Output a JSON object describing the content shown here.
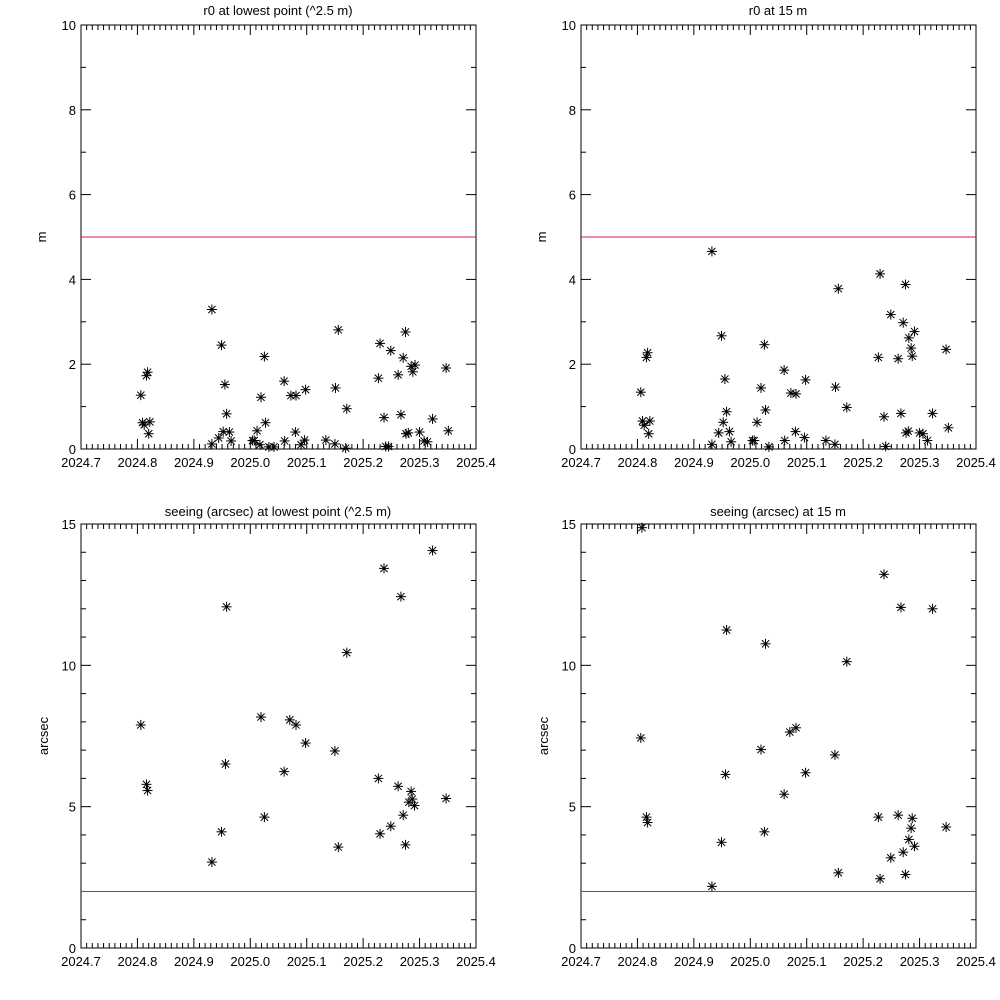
{
  "line_color": "#e0106a",
  "chart_data": [
    {
      "type": "scatter",
      "title": "r0 at lowest point (^2.5 m)",
      "xlabel": "",
      "ylabel": "m",
      "xlim": [
        2024.7,
        2025.4
      ],
      "ylim": [
        0,
        10
      ],
      "xticks": [
        "2024.7",
        "2024.8",
        "2024.9",
        "2025.0",
        "2025.1",
        "2025.2",
        "2025.3",
        "2025.4"
      ],
      "yticks": [
        "0",
        "2",
        "4",
        "6",
        "8",
        "10"
      ],
      "ytick_step": 2,
      "threshold": 5,
      "x": [
        2024.806,
        2024.809,
        2024.812,
        2024.818,
        2024.816,
        2024.822,
        2024.82,
        2024.932,
        2024.949,
        2024.955,
        2024.958,
        2024.944,
        2024.952,
        2024.963,
        2024.966,
        2024.932,
        2025.004,
        2025.007,
        2025.012,
        2025.019,
        2025.025,
        2025.027,
        2025.017,
        2025.033,
        2025.042,
        2025.06,
        2025.072,
        2025.081,
        2025.098,
        2025.08,
        2025.061,
        2025.09,
        2025.096,
        2025.134,
        2025.15,
        2025.151,
        2025.156,
        2025.171,
        2025.169,
        2025.227,
        2025.23,
        2025.237,
        2025.249,
        2025.262,
        2025.275,
        2025.271,
        2025.267,
        2025.276,
        2025.28,
        2025.285,
        2025.288,
        2025.292,
        2025.3,
        2025.308,
        2025.314,
        2025.323,
        2025.347,
        2025.351,
        2025.24,
        2025.245
      ],
      "y": [
        1.27,
        0.62,
        0.57,
        1.81,
        1.73,
        0.64,
        0.36,
        3.29,
        2.45,
        1.52,
        0.83,
        0.26,
        0.41,
        0.4,
        0.19,
        0.12,
        0.2,
        0.2,
        0.43,
        1.22,
        2.18,
        0.62,
        0.1,
        0.05,
        0.05,
        1.6,
        1.26,
        1.26,
        1.4,
        0.4,
        0.19,
        0.1,
        0.21,
        0.21,
        0.12,
        1.44,
        2.81,
        0.95,
        0.02,
        1.67,
        2.49,
        0.74,
        2.32,
        1.75,
        2.76,
        2.15,
        0.81,
        0.36,
        0.38,
        1.95,
        1.82,
        1.98,
        0.4,
        0.19,
        0.17,
        0.71,
        1.91,
        0.43,
        0.06,
        0.06
      ]
    },
    {
      "type": "scatter",
      "title": "r0 at 15 m",
      "xlabel": "",
      "ylabel": "m",
      "xlim": [
        2024.7,
        2025.4
      ],
      "ylim": [
        0,
        10
      ],
      "xticks": [
        "2024.7",
        "2024.8",
        "2024.9",
        "2025.0",
        "2025.1",
        "2025.2",
        "2025.3",
        "2025.4"
      ],
      "yticks": [
        "0",
        "2",
        "4",
        "6",
        "8",
        "10"
      ],
      "ytick_step": 2,
      "threshold": 5,
      "x": [
        2024.806,
        2024.809,
        2024.812,
        2024.822,
        2024.82,
        2024.818,
        2024.816,
        2024.932,
        2024.949,
        2024.955,
        2024.958,
        2024.952,
        2024.944,
        2024.963,
        2024.966,
        2024.932,
        2025.025,
        2025.019,
        2025.027,
        2025.012,
        2025.004,
        2025.007,
        2025.06,
        2025.072,
        2025.081,
        2025.098,
        2025.08,
        2025.061,
        2025.096,
        2025.134,
        2025.15,
        2025.151,
        2025.156,
        2025.171,
        2025.227,
        2025.23,
        2025.237,
        2025.249,
        2025.262,
        2025.275,
        2025.271,
        2025.267,
        2025.276,
        2025.28,
        2025.281,
        2025.285,
        2025.287,
        2025.291,
        2025.3,
        2025.306,
        2025.314,
        2025.323,
        2025.347,
        2025.351,
        2025.24,
        2025.033
      ],
      "y": [
        1.34,
        0.66,
        0.56,
        0.66,
        0.36,
        2.27,
        2.16,
        4.66,
        2.67,
        1.65,
        0.88,
        0.63,
        0.38,
        0.41,
        0.17,
        0.11,
        2.46,
        1.44,
        0.92,
        0.63,
        0.2,
        0.2,
        1.86,
        1.32,
        1.3,
        1.63,
        0.41,
        0.2,
        0.27,
        0.2,
        0.11,
        1.46,
        3.78,
        0.98,
        2.16,
        4.13,
        0.76,
        3.17,
        2.13,
        3.88,
        2.98,
        0.84,
        0.38,
        0.42,
        2.62,
        2.38,
        2.19,
        2.77,
        0.38,
        0.36,
        0.2,
        0.84,
        2.35,
        0.5,
        0.06,
        0.05
      ]
    },
    {
      "type": "scatter",
      "title": "seeing (arcsec) at lowest point (^2.5 m)",
      "xlabel": "",
      "ylabel": "arcsec",
      "xlim": [
        2024.7,
        2025.4
      ],
      "ylim": [
        0,
        15
      ],
      "xticks": [
        "2024.7",
        "2024.8",
        "2024.9",
        "2025.0",
        "2025.1",
        "2025.2",
        "2025.3",
        "2025.4"
      ],
      "yticks": [
        "0",
        "5",
        "10",
        "15"
      ],
      "ytick_step": 5,
      "threshold": 2,
      "x": [
        2024.806,
        2024.816,
        2024.818,
        2024.932,
        2024.949,
        2024.956,
        2024.958,
        2025.019,
        2025.025,
        2025.06,
        2025.07,
        2025.081,
        2025.098,
        2025.15,
        2025.156,
        2025.171,
        2025.227,
        2025.23,
        2025.237,
        2025.249,
        2025.262,
        2025.267,
        2025.271,
        2025.275,
        2025.281,
        2025.285,
        2025.287,
        2025.291,
        2025.323,
        2025.347
      ],
      "y": [
        7.89,
        5.79,
        5.57,
        3.04,
        4.11,
        6.51,
        12.07,
        8.17,
        4.63,
        6.24,
        8.07,
        7.89,
        7.25,
        6.97,
        3.57,
        10.45,
        6.0,
        4.04,
        13.43,
        4.31,
        5.72,
        12.43,
        4.7,
        3.65,
        5.16,
        5.54,
        5.27,
        5.04,
        14.06,
        5.29
      ]
    },
    {
      "type": "scatter",
      "title": "seeing (arcsec) at 15 m",
      "xlabel": "",
      "ylabel": "arcsec",
      "xlim": [
        2024.7,
        2025.4
      ],
      "ylim": [
        0,
        15
      ],
      "xticks": [
        "2024.7",
        "2024.8",
        "2024.9",
        "2025.0",
        "2025.1",
        "2025.2",
        "2025.3",
        "2025.4"
      ],
      "yticks": [
        "0",
        "5",
        "10",
        "15"
      ],
      "ytick_step": 5,
      "threshold": 2,
      "x": [
        2024.806,
        2024.808,
        2024.816,
        2024.818,
        2024.932,
        2024.949,
        2024.956,
        2024.958,
        2025.019,
        2025.025,
        2025.027,
        2025.06,
        2025.07,
        2025.081,
        2025.098,
        2025.15,
        2025.156,
        2025.171,
        2025.227,
        2025.23,
        2025.237,
        2025.249,
        2025.262,
        2025.267,
        2025.271,
        2025.275,
        2025.281,
        2025.285,
        2025.287,
        2025.291,
        2025.323,
        2025.347
      ],
      "y": [
        7.43,
        14.87,
        4.63,
        4.44,
        2.18,
        3.74,
        6.14,
        11.25,
        7.02,
        4.11,
        10.76,
        5.44,
        7.64,
        7.79,
        6.2,
        6.83,
        2.66,
        10.13,
        4.63,
        2.45,
        13.22,
        3.19,
        4.7,
        12.05,
        3.39,
        2.6,
        3.84,
        4.24,
        4.59,
        3.6,
        12.0,
        4.28
      ]
    }
  ]
}
